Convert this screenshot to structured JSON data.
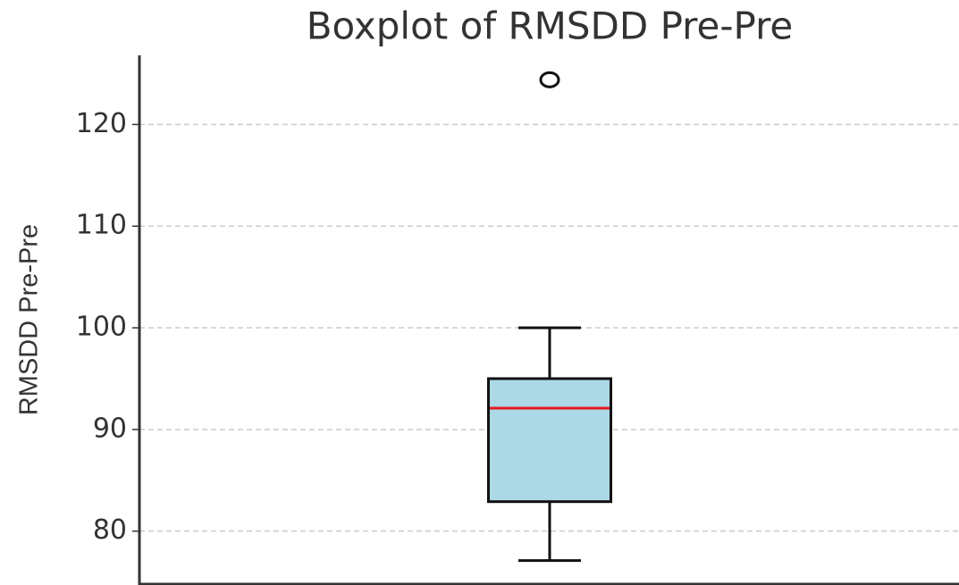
{
  "chart_data": {
    "type": "box",
    "title": "Boxplot of RMSDD Pre-Pre",
    "ylabel": "RMSDD Pre-Pre",
    "boxes": [
      {
        "whislo": 77.1,
        "q1": 82.9,
        "median": 92.1,
        "q3": 95,
        "whishi": 100,
        "fliers": [
          124.4
        ]
      }
    ],
    "box_color": "#add8e6",
    "median_color": "#e41a1c",
    "ylim": [
      74.7,
      126.8
    ],
    "yticks": [
      80,
      90,
      100,
      110,
      120
    ],
    "grid": true
  }
}
